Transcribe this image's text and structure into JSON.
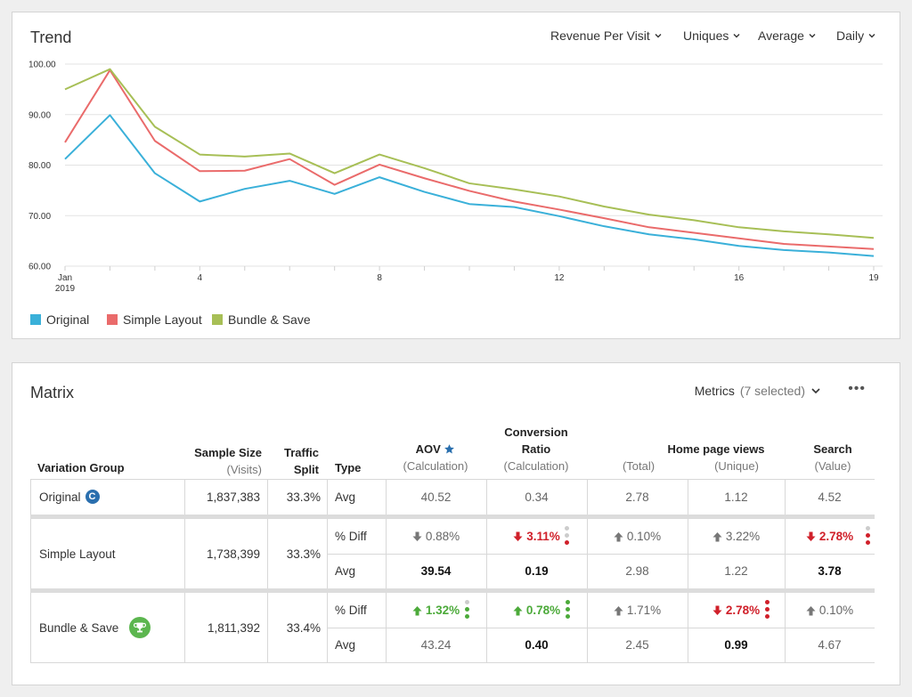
{
  "trend": {
    "title": "Trend",
    "dropdowns": [
      "Revenue Per Visit",
      "Uniques",
      "Average",
      "Daily"
    ],
    "legend": [
      {
        "name": "Original",
        "color": "#3ab0d9"
      },
      {
        "name": "Simple Layout",
        "color": "#ea6b6b"
      },
      {
        "name": "Bundle & Save",
        "color": "#a7bf56"
      }
    ]
  },
  "chart_data": {
    "type": "line",
    "title": "",
    "xlabel": "",
    "ylabel": "",
    "x": [
      1,
      2,
      3,
      4,
      5,
      6,
      7,
      8,
      9,
      10,
      11,
      12,
      13,
      14,
      15,
      16,
      17,
      18,
      19
    ],
    "x_tick_values": [
      1,
      4,
      8,
      12,
      16,
      19
    ],
    "x_tick_labels": [
      "Jan 2019",
      "4",
      "8",
      "12",
      "16",
      "19"
    ],
    "ylim": [
      60,
      100
    ],
    "y_ticks": [
      "60.00",
      "70.00",
      "80.00",
      "90.00",
      "100.00"
    ],
    "grid": true,
    "series": [
      {
        "name": "Original",
        "color": "#3ab0d9",
        "values": [
          81.2,
          89.9,
          78.4,
          72.8,
          75.3,
          76.9,
          74.3,
          77.6,
          74.7,
          72.3,
          71.7,
          69.9,
          67.9,
          66.3,
          65.3,
          64.0,
          63.2,
          62.7,
          62.0
        ]
      },
      {
        "name": "Simple Layout",
        "color": "#ea6b6b",
        "values": [
          84.5,
          98.8,
          84.8,
          78.8,
          78.9,
          81.2,
          76.1,
          80.1,
          77.4,
          74.9,
          72.8,
          71.2,
          69.5,
          67.7,
          66.6,
          65.5,
          64.4,
          63.9,
          63.4
        ]
      },
      {
        "name": "Bundle & Save",
        "color": "#a7bf56",
        "values": [
          95.0,
          99.0,
          87.6,
          82.1,
          81.7,
          82.3,
          78.4,
          82.1,
          79.4,
          76.4,
          75.2,
          73.8,
          71.8,
          70.2,
          69.1,
          67.7,
          66.9,
          66.3,
          65.6
        ]
      }
    ]
  },
  "matrix": {
    "title": "Matrix",
    "metrics_label": "Metrics",
    "metrics_count": "(7 selected)",
    "more": "•••",
    "headers": {
      "variation_group": "Variation Group",
      "sample_size": "Sample Size",
      "sample_size_sub": "(Visits)",
      "traffic_split_1": "Traffic",
      "traffic_split_2": "Split",
      "type": "Type",
      "aov": "AOV",
      "aov_sub": "(Calculation)",
      "conv_1": "Conversion",
      "conv_2": "Ratio",
      "conv_sub": "(Calculation)",
      "hpv": "Home page views",
      "hpv_total": "(Total)",
      "hpv_unique": "(Unique)",
      "search": "Search",
      "search_sub": "(Value)"
    },
    "rows": {
      "original": {
        "name": "Original",
        "badge": "C",
        "sample": "1,837,383",
        "split": "33.3%",
        "type": "Avg",
        "aov": "40.52",
        "conv": "0.34",
        "hpv_total": "2.78",
        "hpv_unique": "1.12",
        "search": "4.52"
      },
      "simple": {
        "name": "Simple Layout",
        "sample": "1,738,399",
        "split": "33.3%",
        "diff_type": "% Diff",
        "avg_type": "Avg",
        "aov_diff": "0.88%",
        "conv_diff": "3.11%",
        "hpv_total_diff": "0.10%",
        "hpv_unique_diff": "3.22%",
        "search_diff": "2.78%",
        "aov_avg": "39.54",
        "conv_avg": "0.19",
        "hpv_total_avg": "2.98",
        "hpv_unique_avg": "1.22",
        "search_avg": "3.78"
      },
      "bundle": {
        "name": "Bundle & Save",
        "sample": "1,811,392",
        "split": "33.4%",
        "diff_type": "% Diff",
        "avg_type": "Avg",
        "aov_diff": "1.32%",
        "conv_diff": "0.78%",
        "hpv_total_diff": "1.71%",
        "hpv_unique_diff": "2.78%",
        "search_diff": "0.10%",
        "aov_avg": "43.24",
        "conv_avg": "0.40",
        "hpv_total_avg": "2.45",
        "hpv_unique_avg": "0.99",
        "search_avg": "4.67"
      }
    },
    "colors": {
      "red": "#d0202a",
      "green": "#4caa3a",
      "gray_arrow": "#777777",
      "badge_blue": "#2a6fae",
      "trophy_green": "#5cb64f",
      "star_blue": "#2a6fae"
    }
  }
}
